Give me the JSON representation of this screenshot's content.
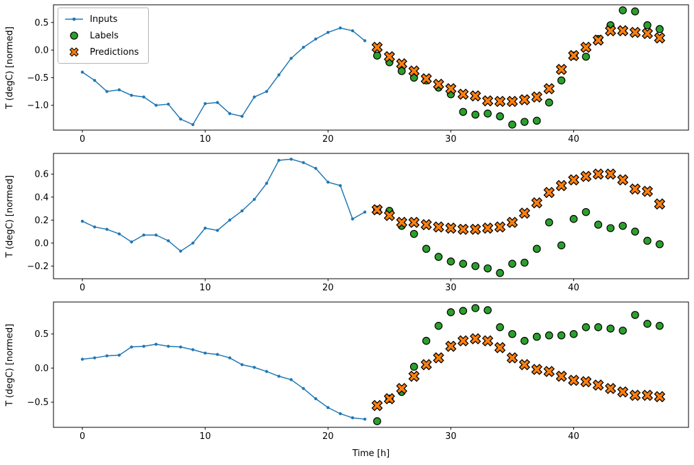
{
  "figure": {
    "xlabel": "Time [h]",
    "ylabel": "T (degC) [normed]",
    "legend_items": [
      {
        "label": "Inputs",
        "marker": "line-dot-icon",
        "color": "#1f77b4"
      },
      {
        "label": "Labels",
        "marker": "circle-icon",
        "color": "#2ca02c"
      },
      {
        "label": "Predictions",
        "marker": "x-icon",
        "color": "#ff7f0e"
      }
    ],
    "colors": {
      "inputs": "#1f77b4",
      "labels": "#2ca02c",
      "predictions": "#ff7f0e",
      "marker_edge": "#000000",
      "axis": "#000000"
    }
  },
  "chart_data": [
    {
      "type": "line",
      "ylabel": "T (degC) [normed]",
      "xlim": [
        -2.35,
        49.35
      ],
      "ylim": [
        -1.45,
        0.82
      ],
      "xticks": [
        0,
        10,
        20,
        30,
        40
      ],
      "yticks": [
        0.5,
        0.0,
        -0.5,
        -1.0
      ],
      "grid": false,
      "legend_position": "upper-left",
      "series": [
        {
          "name": "Inputs",
          "type": "line",
          "color": "#1f77b4",
          "x": [
            0,
            1,
            2,
            3,
            4,
            5,
            6,
            7,
            8,
            9,
            10,
            11,
            12,
            13,
            14,
            15,
            16,
            17,
            18,
            19,
            20,
            21,
            22,
            23
          ],
          "y": [
            -0.4,
            -0.55,
            -0.75,
            -0.72,
            -0.82,
            -0.85,
            -1.0,
            -0.98,
            -1.25,
            -1.35,
            -0.97,
            -0.95,
            -1.15,
            -1.2,
            -0.85,
            -0.75,
            -0.45,
            -0.15,
            0.05,
            0.2,
            0.32,
            0.4,
            0.35,
            0.17
          ]
        },
        {
          "name": "Labels",
          "type": "circle",
          "color": "#2ca02c",
          "x": [
            24,
            25,
            26,
            27,
            28,
            29,
            30,
            31,
            32,
            33,
            34,
            35,
            36,
            37,
            38,
            39,
            40,
            41,
            42,
            43,
            44,
            45,
            46,
            47
          ],
          "y": [
            -0.1,
            -0.22,
            -0.38,
            -0.5,
            -0.55,
            -0.68,
            -0.8,
            -1.12,
            -1.17,
            -1.15,
            -1.2,
            -1.35,
            -1.3,
            -1.28,
            -0.95,
            -0.55,
            -0.1,
            -0.12,
            0.2,
            0.45,
            0.72,
            0.7,
            0.45,
            0.38
          ]
        },
        {
          "name": "Predictions",
          "type": "x",
          "color": "#ff7f0e",
          "x": [
            24,
            25,
            26,
            27,
            28,
            29,
            30,
            31,
            32,
            33,
            34,
            35,
            36,
            37,
            38,
            39,
            40,
            41,
            42,
            43,
            44,
            45,
            46,
            47
          ],
          "y": [
            0.05,
            -0.12,
            -0.25,
            -0.38,
            -0.52,
            -0.62,
            -0.7,
            -0.8,
            -0.83,
            -0.92,
            -0.93,
            -0.93,
            -0.9,
            -0.85,
            -0.7,
            -0.35,
            -0.1,
            0.05,
            0.18,
            0.35,
            0.35,
            0.32,
            0.3,
            0.22
          ]
        }
      ]
    },
    {
      "type": "line",
      "ylabel": "T (degC) [normed]",
      "xlim": [
        -2.35,
        49.35
      ],
      "ylim": [
        -0.31,
        0.78
      ],
      "xticks": [
        0,
        10,
        20,
        30,
        40
      ],
      "yticks": [
        0.6,
        0.4,
        0.2,
        0.0,
        -0.2
      ],
      "grid": false,
      "series": [
        {
          "name": "Inputs",
          "type": "line",
          "color": "#1f77b4",
          "x": [
            0,
            1,
            2,
            3,
            4,
            5,
            6,
            7,
            8,
            9,
            10,
            11,
            12,
            13,
            14,
            15,
            16,
            17,
            18,
            19,
            20,
            21,
            22,
            23
          ],
          "y": [
            0.19,
            0.14,
            0.12,
            0.08,
            0.01,
            0.07,
            0.07,
            0.02,
            -0.07,
            0.0,
            0.13,
            0.11,
            0.2,
            0.28,
            0.38,
            0.52,
            0.72,
            0.73,
            0.7,
            0.65,
            0.53,
            0.5,
            0.21,
            0.27
          ]
        },
        {
          "name": "Labels",
          "type": "circle",
          "color": "#2ca02c",
          "x": [
            24,
            25,
            26,
            27,
            28,
            29,
            30,
            31,
            32,
            33,
            34,
            35,
            36,
            37,
            38,
            39,
            40,
            41,
            42,
            43,
            44,
            45,
            46,
            47
          ],
          "y": [
            0.29,
            0.28,
            0.15,
            0.08,
            -0.05,
            -0.12,
            -0.16,
            -0.18,
            -0.2,
            -0.22,
            -0.26,
            -0.18,
            -0.17,
            -0.05,
            0.18,
            -0.02,
            0.21,
            0.27,
            0.16,
            0.13,
            0.15,
            0.1,
            0.02,
            -0.01
          ]
        },
        {
          "name": "Predictions",
          "type": "x",
          "color": "#ff7f0e",
          "x": [
            24,
            25,
            26,
            27,
            28,
            29,
            30,
            31,
            32,
            33,
            34,
            35,
            36,
            37,
            38,
            39,
            40,
            41,
            42,
            43,
            44,
            45,
            46,
            47
          ],
          "y": [
            0.29,
            0.24,
            0.18,
            0.18,
            0.16,
            0.14,
            0.13,
            0.12,
            0.12,
            0.13,
            0.14,
            0.18,
            0.26,
            0.35,
            0.44,
            0.5,
            0.55,
            0.58,
            0.6,
            0.6,
            0.55,
            0.47,
            0.45,
            0.34
          ]
        }
      ]
    },
    {
      "type": "line",
      "ylabel": "T (degC) [normed]",
      "xlabel": "Time [h]",
      "xlim": [
        -2.35,
        49.35
      ],
      "ylim": [
        -0.87,
        0.97
      ],
      "xticks": [
        0,
        10,
        20,
        30,
        40
      ],
      "yticks": [
        0.5,
        0.0,
        -0.5
      ],
      "grid": false,
      "series": [
        {
          "name": "Inputs",
          "type": "line",
          "color": "#1f77b4",
          "x": [
            0,
            1,
            2,
            3,
            4,
            5,
            6,
            7,
            8,
            9,
            10,
            11,
            12,
            13,
            14,
            15,
            16,
            17,
            18,
            19,
            20,
            21,
            22,
            23
          ],
          "y": [
            0.13,
            0.15,
            0.18,
            0.19,
            0.31,
            0.32,
            0.35,
            0.32,
            0.31,
            0.27,
            0.22,
            0.2,
            0.15,
            0.05,
            0.01,
            -0.05,
            -0.12,
            -0.17,
            -0.3,
            -0.45,
            -0.58,
            -0.67,
            -0.73,
            -0.75
          ]
        },
        {
          "name": "Labels",
          "type": "circle",
          "color": "#2ca02c",
          "x": [
            24,
            25,
            26,
            27,
            28,
            29,
            30,
            31,
            32,
            33,
            34,
            35,
            36,
            37,
            38,
            39,
            40,
            41,
            42,
            43,
            44,
            45,
            46,
            47
          ],
          "y": [
            -0.78,
            -0.45,
            -0.35,
            0.02,
            0.4,
            0.62,
            0.82,
            0.84,
            0.88,
            0.85,
            0.6,
            0.5,
            0.4,
            0.46,
            0.48,
            0.48,
            0.5,
            0.6,
            0.6,
            0.58,
            0.55,
            0.78,
            0.65,
            0.62
          ]
        },
        {
          "name": "Predictions",
          "type": "x",
          "color": "#ff7f0e",
          "x": [
            24,
            25,
            26,
            27,
            28,
            29,
            30,
            31,
            32,
            33,
            34,
            35,
            36,
            37,
            38,
            39,
            40,
            41,
            42,
            43,
            44,
            45,
            46,
            47
          ],
          "y": [
            -0.55,
            -0.45,
            -0.3,
            -0.12,
            0.05,
            0.15,
            0.32,
            0.4,
            0.43,
            0.4,
            0.3,
            0.15,
            0.05,
            -0.02,
            -0.05,
            -0.12,
            -0.18,
            -0.2,
            -0.25,
            -0.3,
            -0.35,
            -0.4,
            -0.4,
            -0.42
          ]
        }
      ]
    }
  ]
}
